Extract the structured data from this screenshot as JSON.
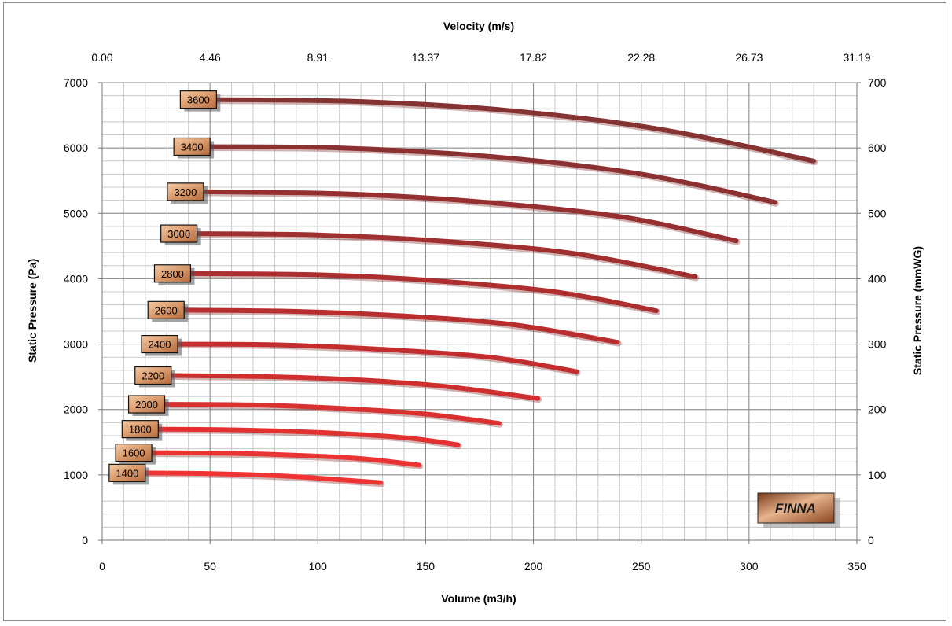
{
  "chart_data": {
    "type": "line",
    "xlabel": "Volume (m3/h)",
    "x2label": "Velocity (m/s)",
    "ylabel": "Static Pressure (Pa)",
    "y2label": "Static Pressure (mmWG)",
    "xlim": [
      0,
      350
    ],
    "ylim": [
      0,
      7000
    ],
    "y2lim": [
      0,
      700
    ],
    "x_ticks": [
      "0",
      "50",
      "100",
      "150",
      "200",
      "250",
      "300",
      "350"
    ],
    "x2_ticks": [
      "0.00",
      "4.46",
      "8.91",
      "13.37",
      "17.82",
      "22.28",
      "26.73",
      "31.19"
    ],
    "y_ticks": [
      "0",
      "1000",
      "2000",
      "3000",
      "4000",
      "5000",
      "6000",
      "7000"
    ],
    "y2_ticks": [
      "0",
      "100",
      "200",
      "300",
      "400",
      "500",
      "600",
      "700"
    ],
    "grid": true,
    "series": [
      {
        "name": "1400",
        "color": "#ef3434",
        "x": [
          20,
          50,
          80,
          100,
          129
        ],
        "y": [
          1030,
          1020,
          990,
          950,
          880
        ]
      },
      {
        "name": "1600",
        "color": "#ea3333",
        "x": [
          23,
          60,
          90,
          120,
          147
        ],
        "y": [
          1340,
          1330,
          1300,
          1250,
          1150
        ]
      },
      {
        "name": "1800",
        "color": "#e23131",
        "x": [
          26,
          60,
          100,
          140,
          165
        ],
        "y": [
          1700,
          1690,
          1650,
          1570,
          1460
        ]
      },
      {
        "name": "2000",
        "color": "#d93030",
        "x": [
          29,
          70,
          110,
          150,
          184
        ],
        "y": [
          2080,
          2070,
          2020,
          1930,
          1790
        ]
      },
      {
        "name": "2200",
        "color": "#cf2e2e",
        "x": [
          32,
          80,
          120,
          160,
          202
        ],
        "y": [
          2520,
          2500,
          2450,
          2350,
          2170
        ]
      },
      {
        "name": "2400",
        "color": "#c42d2d",
        "x": [
          35,
          80,
          130,
          180,
          220
        ],
        "y": [
          3000,
          2990,
          2920,
          2800,
          2580
        ]
      },
      {
        "name": "2600",
        "color": "#b82d2d",
        "x": [
          38,
          90,
          140,
          190,
          239
        ],
        "y": [
          3520,
          3500,
          3430,
          3300,
          3030
        ]
      },
      {
        "name": "2800",
        "color": "#ac2e2e",
        "x": [
          41,
          100,
          150,
          210,
          257
        ],
        "y": [
          4080,
          4060,
          3980,
          3800,
          3510
        ]
      },
      {
        "name": "3000",
        "color": "#a02f2f",
        "x": [
          44,
          100,
          160,
          220,
          275
        ],
        "y": [
          4690,
          4670,
          4570,
          4380,
          4030
        ]
      },
      {
        "name": "3200",
        "color": "#963030",
        "x": [
          47,
          110,
          170,
          240,
          294
        ],
        "y": [
          5330,
          5300,
          5190,
          4950,
          4580
        ]
      },
      {
        "name": "3400",
        "color": "#8c3131",
        "x": [
          50,
          110,
          180,
          250,
          312
        ],
        "y": [
          6020,
          6000,
          5870,
          5600,
          5170
        ]
      },
      {
        "name": "3600",
        "color": "#843232",
        "x": [
          53,
          120,
          190,
          260,
          330
        ],
        "y": [
          6740,
          6710,
          6570,
          6280,
          5800
        ]
      }
    ]
  },
  "brand": {
    "name": "FINNA"
  }
}
